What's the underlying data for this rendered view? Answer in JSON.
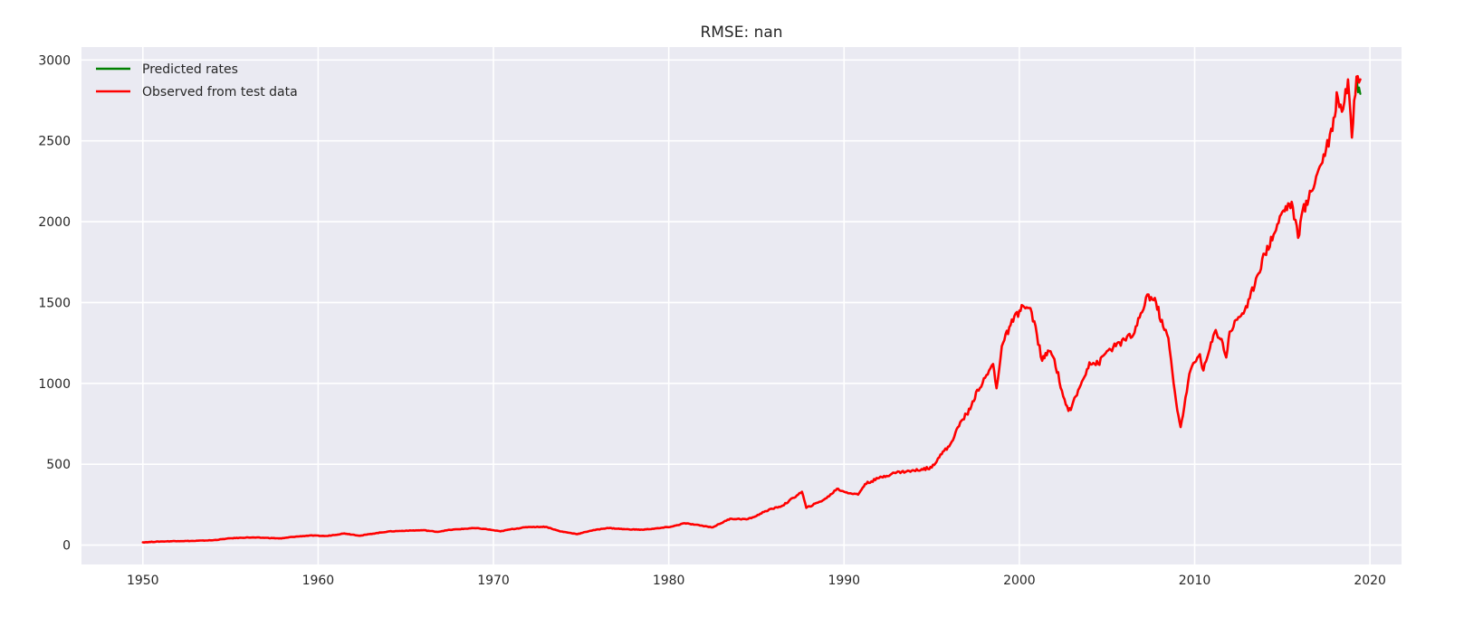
{
  "chart_data": {
    "type": "line",
    "title": "RMSE: nan",
    "xlabel": "",
    "ylabel": "",
    "xlim": [
      1946.5,
      2021.8
    ],
    "ylim": [
      -120,
      3080
    ],
    "xticks": [
      1950,
      1960,
      1970,
      1980,
      1990,
      2000,
      2010,
      2020
    ],
    "xtick_labels": [
      "1950",
      "1960",
      "1970",
      "1980",
      "1990",
      "2000",
      "2010",
      "2020"
    ],
    "yticks": [
      0,
      500,
      1000,
      1500,
      2000,
      2500,
      3000
    ],
    "ytick_labels": [
      "0",
      "500",
      "1000",
      "1500",
      "2000",
      "2500",
      "3000"
    ],
    "grid": true,
    "legend_position": "top-left",
    "series": [
      {
        "name": "Predicted rates",
        "color": "#008000",
        "x": [
          2019.25,
          2019.32,
          2019.38,
          2019.45
        ],
        "y": [
          2880,
          2800,
          2830,
          2790
        ]
      },
      {
        "name": "Observed from test data",
        "color": "#ff0000",
        "x": [
          1950.0,
          1951.0,
          1952.0,
          1953.0,
          1954.0,
          1955.0,
          1956.0,
          1957.0,
          1957.9,
          1958.5,
          1959.5,
          1960.5,
          1961.5,
          1962.4,
          1963.0,
          1964.0,
          1965.0,
          1966.0,
          1966.8,
          1967.5,
          1968.9,
          1969.5,
          1970.4,
          1971.0,
          1972.0,
          1973.0,
          1973.8,
          1974.8,
          1975.5,
          1976.5,
          1977.5,
          1978.5,
          1979.5,
          1980.2,
          1980.9,
          1981.5,
          1982.5,
          1983.5,
          1984.5,
          1985.0,
          1985.5,
          1986.5,
          1987.6,
          1987.85,
          1988.5,
          1989.0,
          1989.6,
          1990.0,
          1990.8,
          1991.2,
          1992.0,
          1993.0,
          1994.0,
          1995.0,
          1995.5,
          1996.0,
          1996.7,
          1997.2,
          1997.6,
          1997.9,
          1998.5,
          1998.7,
          1999.0,
          1999.5,
          2000.0,
          2000.2,
          2000.7,
          2001.0,
          2001.3,
          2001.7,
          2002.0,
          2002.5,
          2002.8,
          2003.0,
          2003.5,
          2004.0,
          2004.5,
          2005.0,
          2005.5,
          2006.0,
          2006.5,
          2007.0,
          2007.3,
          2007.8,
          2008.2,
          2008.5,
          2008.8,
          2008.95,
          2009.2,
          2009.4,
          2009.7,
          2010.0,
          2010.3,
          2010.5,
          2010.8,
          2011.2,
          2011.6,
          2011.8,
          2012.0,
          2012.5,
          2013.0,
          2013.5,
          2014.0,
          2014.5,
          2015.0,
          2015.4,
          2015.6,
          2015.9,
          2016.1,
          2016.5,
          2017.0,
          2017.5,
          2018.0,
          2018.1,
          2018.4,
          2018.75,
          2018.97,
          2019.1,
          2019.3,
          2019.45
        ],
        "y": [
          17,
          22,
          25,
          26,
          30,
          42,
          47,
          45,
          41,
          50,
          59,
          56,
          72,
          58,
          69,
          84,
          89,
          92,
          82,
          94,
          105,
          100,
          85,
          98,
          112,
          113,
          85,
          68,
          88,
          106,
          98,
          95,
          105,
          115,
          135,
          126,
          110,
          163,
          160,
          180,
          210,
          244,
          330,
          230,
          262,
          290,
          348,
          330,
          312,
          378,
          415,
          450,
          460,
          480,
          560,
          610,
          770,
          840,
          960,
          1000,
          1120,
          970,
          1230,
          1360,
          1450,
          1480,
          1440,
          1300,
          1140,
          1200,
          1150,
          920,
          830,
          860,
          990,
          1130,
          1120,
          1200,
          1230,
          1270,
          1300,
          1440,
          1550,
          1500,
          1350,
          1280,
          1000,
          880,
          730,
          850,
          1060,
          1130,
          1180,
          1080,
          1190,
          1330,
          1250,
          1160,
          1320,
          1410,
          1470,
          1650,
          1800,
          1920,
          2060,
          2110,
          2090,
          1900,
          2040,
          2140,
          2300,
          2450,
          2650,
          2800,
          2680,
          2880,
          2520,
          2750,
          2900,
          2880
        ]
      }
    ]
  }
}
